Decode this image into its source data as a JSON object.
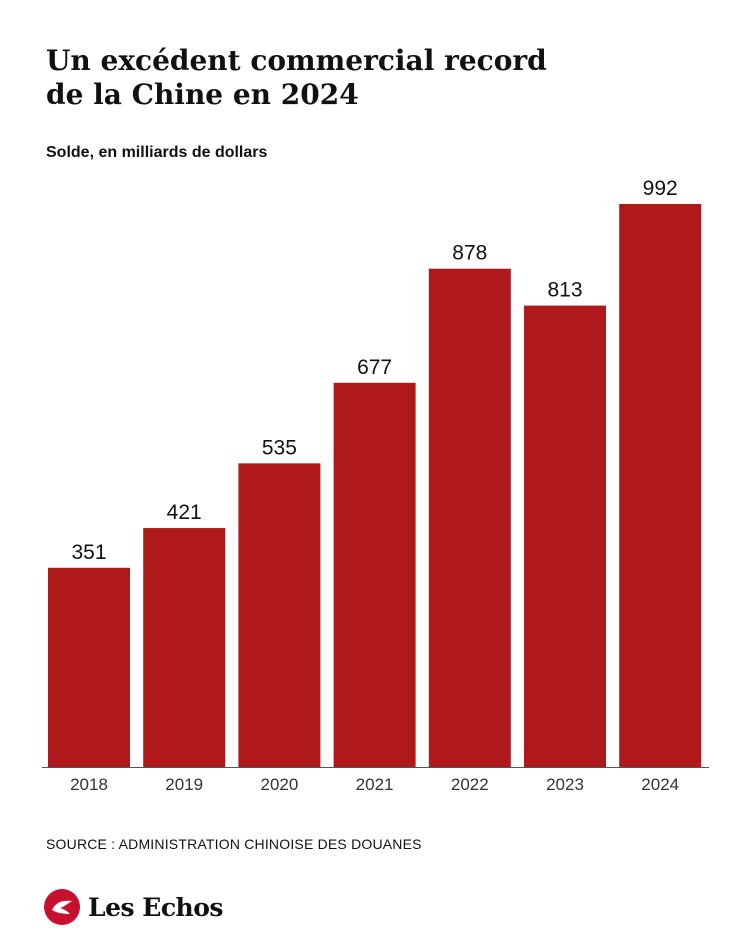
{
  "header": {
    "title_line1": "Un excédent commercial record",
    "title_line2": "de la Chine en 2024",
    "subtitle": "Solde, en milliards de dollars"
  },
  "chart_data": {
    "type": "bar",
    "title": "Un excédent commercial record de la Chine en 2024",
    "subtitle": "Solde, en milliards de dollars",
    "xlabel": "",
    "ylabel": "",
    "categories": [
      "2018",
      "2019",
      "2020",
      "2021",
      "2022",
      "2023",
      "2024"
    ],
    "values": [
      351,
      421,
      535,
      677,
      878,
      813,
      992
    ],
    "ylim": [
      0,
      992
    ],
    "grid": false,
    "data_labels": true,
    "bar_color": "#b0191c"
  },
  "footer": {
    "source": "SOURCE : ADMINISTRATION CHINOISE DES DOUANES",
    "brand": "Les Echos",
    "brand_color": "#c8102e"
  }
}
